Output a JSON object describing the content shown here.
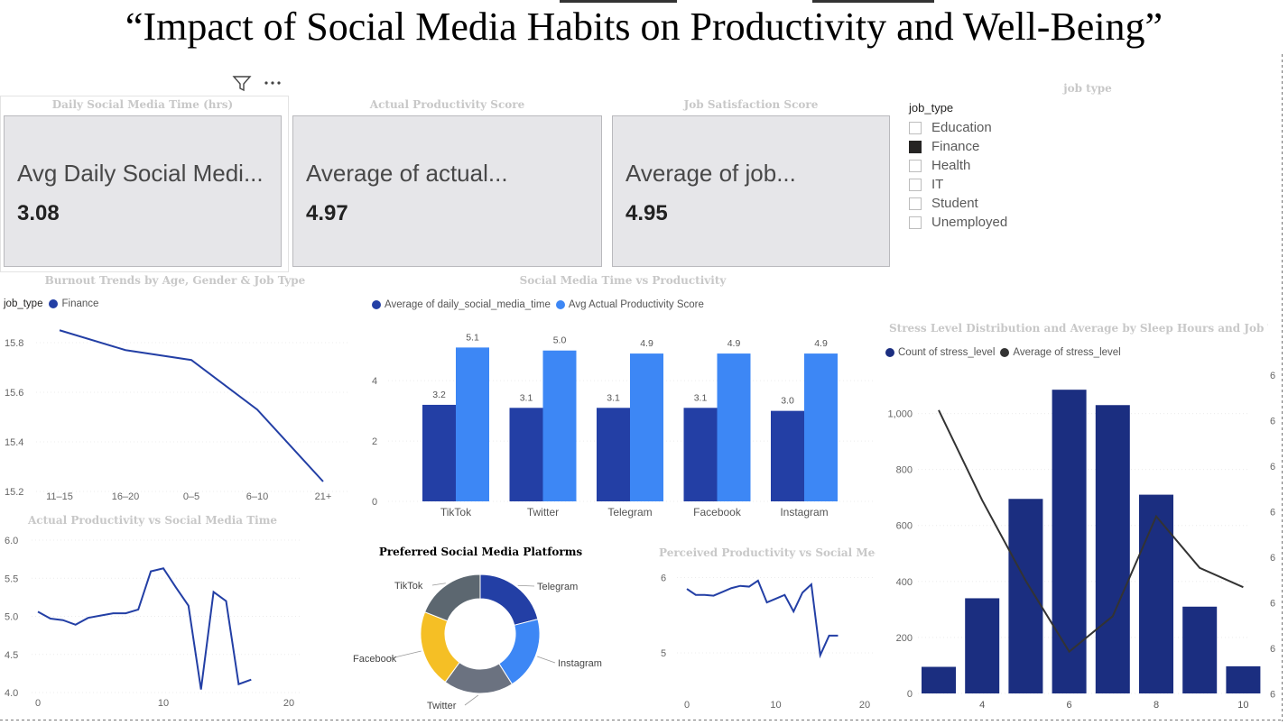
{
  "report": {
    "title": "“Impact of Social Media Habits on Productivity and Well-Being”"
  },
  "header_icons": {
    "filter": "filter-icon",
    "more": "more-options-icon"
  },
  "cards": [
    {
      "title": "Daily Social Media Time (hrs)",
      "label": "Avg Daily Social Medi...",
      "value": "3.08"
    },
    {
      "title": "Actual Productivity Score",
      "label": "Average of actual...",
      "value": "4.97"
    },
    {
      "title": "Job Satisfaction Score",
      "label": "Average of job...",
      "value": "4.95"
    }
  ],
  "slicer": {
    "title": "job type",
    "field": "job_type",
    "items": [
      {
        "label": "Education",
        "checked": false
      },
      {
        "label": "Finance",
        "checked": true
      },
      {
        "label": "Health",
        "checked": false
      },
      {
        "label": "IT",
        "checked": false
      },
      {
        "label": "Student",
        "checked": false
      },
      {
        "label": "Unemployed",
        "checked": false
      }
    ]
  },
  "colors": {
    "dark_blue": "#233fa5",
    "light_blue": "#3d87f5",
    "navy": "#1b2e80",
    "line_dark": "#333333",
    "yellow": "#f5bf25",
    "gray": "#6b7280",
    "slate": "#5c6770"
  },
  "chart_data": [
    {
      "id": "burnout",
      "type": "line",
      "title": "Burnout Trends by Age, Gender & Job Type",
      "legend_title": "job_type",
      "series": [
        {
          "name": "Finance",
          "values": [
            15.85,
            15.77,
            15.73,
            15.53,
            15.24
          ]
        }
      ],
      "categories": [
        "11–15",
        "16–20",
        "0–5",
        "6–10",
        "21+"
      ],
      "yticks": [
        "15.8",
        "15.6",
        "15.4",
        "15.2"
      ],
      "ylim": [
        15.2,
        15.8
      ]
    },
    {
      "id": "sm_vs_prod",
      "type": "bar",
      "title": "Social Media Time vs Productivity",
      "categories": [
        "TikTok",
        "Twitter",
        "Telegram",
        "Facebook",
        "Instagram"
      ],
      "series": [
        {
          "name": "Average of daily_social_media_time",
          "values": [
            3.2,
            3.1,
            3.1,
            3.1,
            3.0
          ],
          "labels": [
            "3.2",
            "3.1",
            "3.1",
            "3.1",
            "3.0"
          ]
        },
        {
          "name": "Avg Actual Productivity Score",
          "values": [
            5.1,
            5.0,
            4.9,
            4.9,
            4.9
          ],
          "labels": [
            "5.1",
            "5.0",
            "4.9",
            "4.9",
            "4.9"
          ]
        }
      ],
      "yticks": [
        "4",
        "2",
        "0"
      ],
      "ylim": [
        0,
        5.5
      ]
    },
    {
      "id": "stress",
      "type": "bar",
      "title": "Stress Level Distribution and Average by Sleep Hours and Job Type",
      "x": [
        3,
        4,
        5,
        6,
        7,
        8,
        9,
        10
      ],
      "xticks": [
        "4",
        "6",
        "8",
        "10"
      ],
      "series": [
        {
          "name": "Count of stress_level",
          "values": [
            95,
            340,
            695,
            1085,
            1030,
            710,
            310,
            97
          ]
        },
        {
          "name": "Average of stress_level",
          "values": [
            0.88,
            0.6,
            0.35,
            0.13,
            0.24,
            0.55,
            0.39,
            0.33
          ]
        }
      ],
      "yticks": [
        "1,000",
        "800",
        "600",
        "400",
        "200",
        "0"
      ],
      "ylim": [
        0,
        1150
      ],
      "y2ticks": [
        "6",
        "6",
        "6",
        "6",
        "6",
        "6",
        "6",
        "6"
      ],
      "y2lim": [
        0,
        1
      ]
    },
    {
      "id": "actual_vs_sm",
      "type": "line",
      "title": "Actual Productivity vs Social Media Time",
      "x": [
        0,
        1,
        2,
        3,
        4,
        5,
        6,
        7,
        8,
        9,
        10,
        11,
        12,
        13,
        14,
        15,
        16,
        17
      ],
      "values": [
        5.06,
        4.97,
        4.95,
        4.89,
        4.98,
        5.01,
        5.04,
        5.04,
        5.09,
        5.59,
        5.63,
        5.38,
        5.14,
        4.04,
        5.32,
        5.2,
        4.11,
        4.17
      ],
      "yticks": [
        "6.0",
        "5.5",
        "5.0",
        "4.5",
        "4.0"
      ],
      "xticks": [
        "0",
        "10",
        "20"
      ],
      "ylim": [
        4.0,
        6.0
      ],
      "xlim": [
        0,
        20
      ]
    },
    {
      "id": "platforms",
      "type": "pie",
      "title": "Preferred Social Media Platforms",
      "labels": [
        "Telegram",
        "Instagram",
        "Twitter",
        "Facebook",
        "TikTok"
      ],
      "values": [
        21,
        20,
        19,
        21,
        19
      ]
    },
    {
      "id": "perceived_vs_sm",
      "type": "line",
      "title": "Perceived Productivity vs Social Med...",
      "x": [
        0,
        1,
        2,
        3,
        4,
        5,
        6,
        7,
        8,
        9,
        10,
        11,
        12,
        13,
        14,
        15,
        16,
        17
      ],
      "values": [
        5.85,
        5.77,
        5.77,
        5.76,
        5.81,
        5.86,
        5.89,
        5.88,
        5.96,
        5.67,
        5.72,
        5.77,
        5.55,
        5.8,
        5.91,
        4.97,
        5.23,
        5.23
      ],
      "yticks": [
        "6",
        "5"
      ],
      "xticks": [
        "0",
        "10",
        "20"
      ],
      "ylim": [
        4.45,
        6.15
      ],
      "xlim": [
        0,
        20
      ]
    }
  ]
}
